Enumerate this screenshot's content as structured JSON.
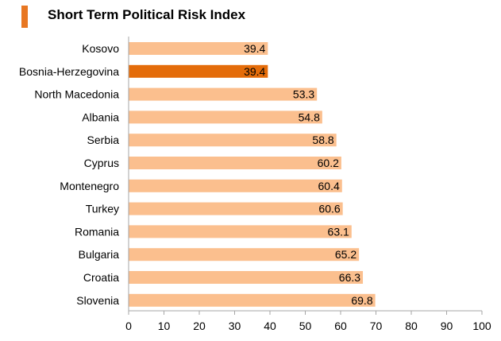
{
  "header": {
    "title": "Short Term Political Risk Index"
  },
  "colors": {
    "bar": "#fbbf8e",
    "highlight": "#e46c0a",
    "accent": "#e87722",
    "axis": "#a6a6a6"
  },
  "chart_data": {
    "type": "bar",
    "orientation": "horizontal",
    "title": "Short Term Political Risk Index",
    "xlabel": "",
    "ylabel": "",
    "xlim": [
      0,
      100
    ],
    "xticks": [
      0,
      10,
      20,
      30,
      40,
      50,
      60,
      70,
      80,
      90,
      100
    ],
    "grid": false,
    "legend": "none",
    "highlighted_category": "Bosnia-Herzegovina",
    "categories": [
      "Kosovo",
      "Bosnia-Herzegovina",
      "North Macedonia",
      "Albania",
      "Serbia",
      "Cyprus",
      "Montenegro",
      "Turkey",
      "Romania",
      "Bulgaria",
      "Croatia",
      "Slovenia"
    ],
    "values": [
      39.4,
      39.4,
      53.3,
      54.8,
      58.8,
      60.2,
      60.4,
      60.6,
      63.1,
      65.2,
      66.3,
      69.8
    ],
    "value_labels": [
      "39.4",
      "39.4",
      "53.3",
      "54.8",
      "58.8",
      "60.2",
      "60.4",
      "60.6",
      "63.1",
      "65.2",
      "66.3",
      "69.8"
    ]
  }
}
